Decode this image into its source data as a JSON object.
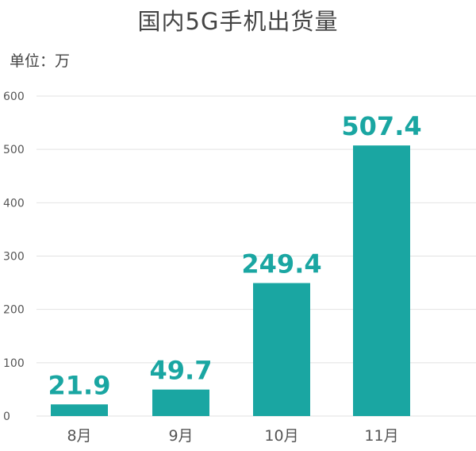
{
  "chart_data": {
    "type": "bar",
    "title": "国内5G手机出货量",
    "unit_label": "单位：万",
    "categories": [
      "8月",
      "9月",
      "10月",
      "11月"
    ],
    "values": [
      21.9,
      49.7,
      249.4,
      507.4
    ],
    "data_labels": [
      "21.9",
      "49.7",
      "249.4",
      "507.4"
    ],
    "ylim": [
      0,
      600
    ],
    "yticks": [
      0,
      100,
      200,
      300,
      400,
      500,
      600
    ],
    "grid": true,
    "colors": {
      "bar": "#1aa6a2",
      "label": "#1aa6a2",
      "grid": "#e2e2e2",
      "axis_text": "#555555"
    }
  }
}
